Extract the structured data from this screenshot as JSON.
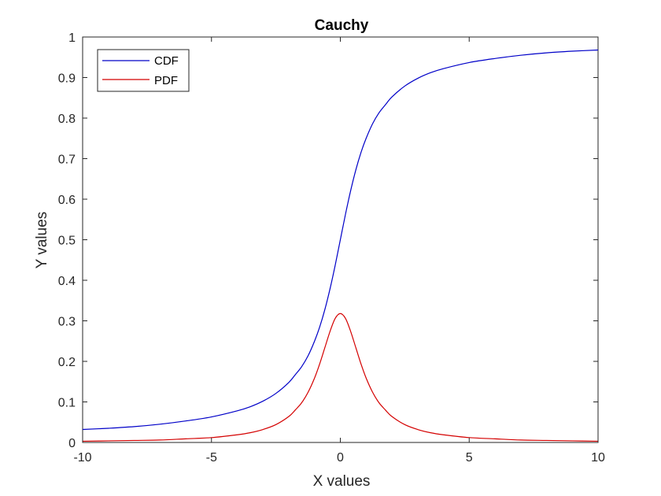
{
  "chart_data": {
    "type": "line",
    "title": "Cauchy",
    "xlabel": "X values",
    "ylabel": "Y values",
    "xlim": [
      -10,
      10
    ],
    "ylim": [
      0,
      1
    ],
    "x_ticks": [
      "-10",
      "-5",
      "0",
      "5",
      "10"
    ],
    "y_ticks": [
      "0",
      "0.1",
      "0.2",
      "0.3",
      "0.4",
      "0.5",
      "0.6",
      "0.7",
      "0.8",
      "0.9",
      "1"
    ],
    "grid": false,
    "legend_position": "top-left",
    "x": [
      -10,
      -9,
      -8,
      -7,
      -6,
      -5,
      -4,
      -3.5,
      -3,
      -2.5,
      -2,
      -1.75,
      -1.5,
      -1.25,
      -1,
      -0.8,
      -0.6,
      -0.4,
      -0.2,
      0,
      0.2,
      0.4,
      0.6,
      0.8,
      1,
      1.25,
      1.5,
      1.75,
      2,
      2.5,
      3,
      3.5,
      4,
      5,
      6,
      7,
      8,
      9,
      10
    ],
    "series": [
      {
        "name": "CDF",
        "color": "#0000c8",
        "values": [
          0.032,
          0.035,
          0.039,
          0.045,
          0.053,
          0.063,
          0.078,
          0.088,
          0.102,
          0.121,
          0.148,
          0.167,
          0.187,
          0.214,
          0.25,
          0.285,
          0.328,
          0.379,
          0.437,
          0.5,
          0.563,
          0.621,
          0.672,
          0.715,
          0.75,
          0.786,
          0.813,
          0.833,
          0.852,
          0.879,
          0.898,
          0.912,
          0.922,
          0.937,
          0.947,
          0.955,
          0.961,
          0.965,
          0.968
        ]
      },
      {
        "name": "PDF",
        "color": "#d40000",
        "values": [
          0.003,
          0.004,
          0.005,
          0.006,
          0.009,
          0.012,
          0.019,
          0.024,
          0.032,
          0.044,
          0.064,
          0.08,
          0.098,
          0.124,
          0.159,
          0.194,
          0.234,
          0.274,
          0.306,
          0.318,
          0.306,
          0.274,
          0.234,
          0.194,
          0.159,
          0.124,
          0.098,
          0.08,
          0.064,
          0.044,
          0.032,
          0.024,
          0.019,
          0.012,
          0.009,
          0.006,
          0.005,
          0.004,
          0.003
        ]
      }
    ]
  }
}
